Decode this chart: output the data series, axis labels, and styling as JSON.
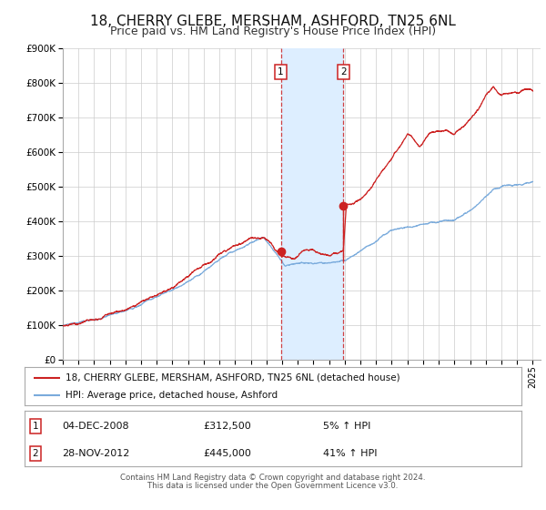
{
  "title": "18, CHERRY GLEBE, MERSHAM, ASHFORD, TN25 6NL",
  "subtitle": "Price paid vs. HM Land Registry's House Price Index (HPI)",
  "title_fontsize": 11,
  "subtitle_fontsize": 9,
  "ylim": [
    0,
    900000
  ],
  "yticks": [
    0,
    100000,
    200000,
    300000,
    400000,
    500000,
    600000,
    700000,
    800000,
    900000
  ],
  "ytick_labels": [
    "£0",
    "£100K",
    "£200K",
    "£300K",
    "£400K",
    "£500K",
    "£600K",
    "£700K",
    "£800K",
    "£900K"
  ],
  "xmin": 1995.0,
  "xmax": 2025.5,
  "hpi_color": "#7aabdc",
  "price_color": "#cc2222",
  "grid_color": "#cccccc",
  "sale1_x": 2008.92,
  "sale1_y": 312500,
  "sale1_label": "1",
  "sale1_date": "04-DEC-2008",
  "sale1_price": "£312,500",
  "sale1_hpi": "5% ↑ HPI",
  "sale2_x": 2012.91,
  "sale2_y": 445000,
  "sale2_label": "2",
  "sale2_date": "28-NOV-2012",
  "sale2_price": "£445,000",
  "sale2_hpi": "41% ↑ HPI",
  "shade_color": "#ddeeff",
  "legend_line1": "18, CHERRY GLEBE, MERSHAM, ASHFORD, TN25 6NL (detached house)",
  "legend_line2": "HPI: Average price, detached house, Ashford",
  "footnote1": "Contains HM Land Registry data © Crown copyright and database right 2024.",
  "footnote2": "This data is licensed under the Open Government Licence v3.0.",
  "xticks": [
    1995,
    1996,
    1997,
    1998,
    1999,
    2000,
    2001,
    2002,
    2003,
    2004,
    2005,
    2006,
    2007,
    2008,
    2009,
    2010,
    2011,
    2012,
    2013,
    2014,
    2015,
    2016,
    2017,
    2018,
    2019,
    2020,
    2021,
    2022,
    2023,
    2024,
    2025
  ]
}
